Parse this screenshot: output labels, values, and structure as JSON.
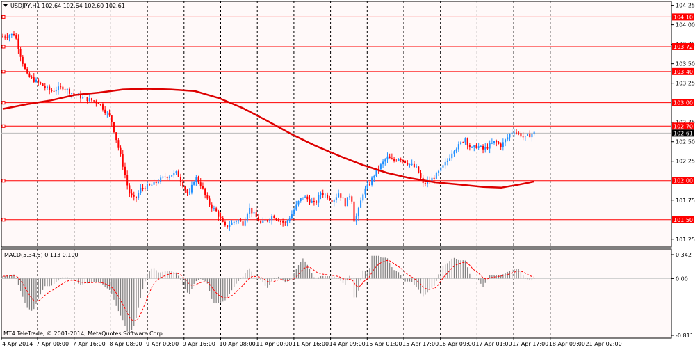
{
  "header": {
    "symbol_line": "USDJPY,H1  102.64 102.64 102.60 102.61",
    "collapse_icon": "triangle-down-icon"
  },
  "indicator": {
    "label": "MACD(5,34,5) 0.113 0.100"
  },
  "copyright": "MT4 TeleTrade, © 2001-2014, MetaQuotes Software Corp.",
  "colors": {
    "background": "#ffffff",
    "plot_bg": "#fff8f8",
    "bull": "#1e8fff",
    "bear": "#ff0000",
    "level_line": "#ff0000",
    "ma_line": "#dd0000",
    "macd_hist": "#7f7f7f",
    "macd_signal": "#ff0000",
    "grid": "#000000",
    "current_price_bg": "#000000"
  },
  "chart_data": [
    {
      "type": "candlestick",
      "symbol": "USDJPY",
      "timeframe": "H1",
      "ohlc_header": {
        "open": 102.64,
        "high": 102.64,
        "low": 102.6,
        "close": 102.61
      },
      "ylim": [
        101.15,
        104.3
      ],
      "y_ticks": [
        "104.25",
        "104.00",
        "103.75",
        "103.50",
        "103.25",
        "102.75",
        "102.50",
        "102.25",
        "101.75",
        "101.25"
      ],
      "x_ticks": [
        "4 Apr 2014",
        "7 Apr 00:00",
        "7 Apr 16:00",
        "8 Apr 08:00",
        "9 Apr 00:00",
        "9 Apr 16:00",
        "10 Apr 08:00",
        "11 Apr 00:00",
        "11 Apr 16:00",
        "14 Apr 09:00",
        "15 Apr 01:00",
        "15 Apr 17:00",
        "16 Apr 09:00",
        "17 Apr 01:00",
        "17 Apr 17:00",
        "18 Apr 09:00",
        "21 Apr 02:00"
      ],
      "horizontal_levels": [
        {
          "value": 104.1,
          "label": "104.10"
        },
        {
          "value": 103.72,
          "label": "103.72"
        },
        {
          "value": 103.4,
          "label": "103.40"
        },
        {
          "value": 103.0,
          "label": "103.00"
        },
        {
          "value": 102.7,
          "label": "102.70"
        },
        {
          "value": 102.0,
          "label": "102.00"
        },
        {
          "value": 101.5,
          "label": "101.50"
        }
      ],
      "current_price": {
        "value": 102.61,
        "label": "102.61"
      },
      "close_path": [
        [
          0,
          103.85
        ],
        [
          0.02,
          103.88
        ],
        [
          0.03,
          103.6
        ],
        [
          0.04,
          103.35
        ],
        [
          0.06,
          103.25
        ],
        [
          0.08,
          103.15
        ],
        [
          0.1,
          103.2
        ],
        [
          0.12,
          103.1
        ],
        [
          0.14,
          103.05
        ],
        [
          0.16,
          103.0
        ],
        [
          0.17,
          102.9
        ],
        [
          0.18,
          102.8
        ],
        [
          0.19,
          102.5
        ],
        [
          0.2,
          102.2
        ],
        [
          0.21,
          101.85
        ],
        [
          0.22,
          101.75
        ],
        [
          0.23,
          101.9
        ],
        [
          0.25,
          101.95
        ],
        [
          0.27,
          102.05
        ],
        [
          0.29,
          102.1
        ],
        [
          0.3,
          101.95
        ],
        [
          0.31,
          101.8
        ],
        [
          0.32,
          102.05
        ],
        [
          0.33,
          101.95
        ],
        [
          0.34,
          101.75
        ],
        [
          0.35,
          101.65
        ],
        [
          0.36,
          101.55
        ],
        [
          0.37,
          101.4
        ],
        [
          0.38,
          101.45
        ],
        [
          0.39,
          101.5
        ],
        [
          0.4,
          101.45
        ],
        [
          0.41,
          101.65
        ],
        [
          0.42,
          101.55
        ],
        [
          0.43,
          101.45
        ],
        [
          0.44,
          101.5
        ],
        [
          0.45,
          101.55
        ],
        [
          0.46,
          101.5
        ],
        [
          0.47,
          101.45
        ],
        [
          0.48,
          101.55
        ],
        [
          0.49,
          101.7
        ],
        [
          0.5,
          101.8
        ],
        [
          0.51,
          101.75
        ],
        [
          0.52,
          101.7
        ],
        [
          0.53,
          101.85
        ],
        [
          0.54,
          101.8
        ],
        [
          0.55,
          101.75
        ],
        [
          0.56,
          101.85
        ],
        [
          0.57,
          101.7
        ],
        [
          0.58,
          101.85
        ],
        [
          0.585,
          101.5
        ],
        [
          0.59,
          101.55
        ],
        [
          0.6,
          101.85
        ],
        [
          0.61,
          101.95
        ],
        [
          0.62,
          102.1
        ],
        [
          0.63,
          102.2
        ],
        [
          0.64,
          102.3
        ],
        [
          0.65,
          102.25
        ],
        [
          0.66,
          102.3
        ],
        [
          0.67,
          102.25
        ],
        [
          0.68,
          102.2
        ],
        [
          0.69,
          102.15
        ],
        [
          0.7,
          101.95
        ],
        [
          0.71,
          102.0
        ],
        [
          0.72,
          102.05
        ],
        [
          0.73,
          102.15
        ],
        [
          0.74,
          102.25
        ],
        [
          0.75,
          102.4
        ],
        [
          0.76,
          102.45
        ],
        [
          0.77,
          102.55
        ],
        [
          0.78,
          102.4
        ],
        [
          0.79,
          102.45
        ],
        [
          0.8,
          102.4
        ],
        [
          0.81,
          102.45
        ],
        [
          0.82,
          102.5
        ],
        [
          0.83,
          102.45
        ],
        [
          0.84,
          102.55
        ],
        [
          0.85,
          102.65
        ],
        [
          0.86,
          102.6
        ],
        [
          0.87,
          102.55
        ],
        [
          0.88,
          102.6
        ],
        [
          0.885,
          102.61
        ]
      ],
      "moving_average": [
        [
          0,
          102.92
        ],
        [
          0.04,
          102.98
        ],
        [
          0.08,
          103.03
        ],
        [
          0.12,
          103.1
        ],
        [
          0.16,
          103.13
        ],
        [
          0.2,
          103.17
        ],
        [
          0.24,
          103.18
        ],
        [
          0.28,
          103.17
        ],
        [
          0.32,
          103.15
        ],
        [
          0.36,
          103.06
        ],
        [
          0.4,
          102.93
        ],
        [
          0.44,
          102.77
        ],
        [
          0.48,
          102.6
        ],
        [
          0.52,
          102.45
        ],
        [
          0.56,
          102.32
        ],
        [
          0.6,
          102.2
        ],
        [
          0.64,
          102.1
        ],
        [
          0.68,
          102.03
        ],
        [
          0.72,
          101.98
        ],
        [
          0.76,
          101.95
        ],
        [
          0.8,
          101.92
        ],
        [
          0.83,
          101.91
        ],
        [
          0.86,
          101.95
        ],
        [
          0.885,
          101.99
        ]
      ]
    },
    {
      "type": "bar",
      "name": "MACD(5,34,5)",
      "ylim": [
        -0.811,
        0.342
      ],
      "y_ticks": [
        "0.342",
        "0.00",
        "-0.811"
      ],
      "macd_value": 0.113,
      "signal_value": 0.1
    }
  ]
}
